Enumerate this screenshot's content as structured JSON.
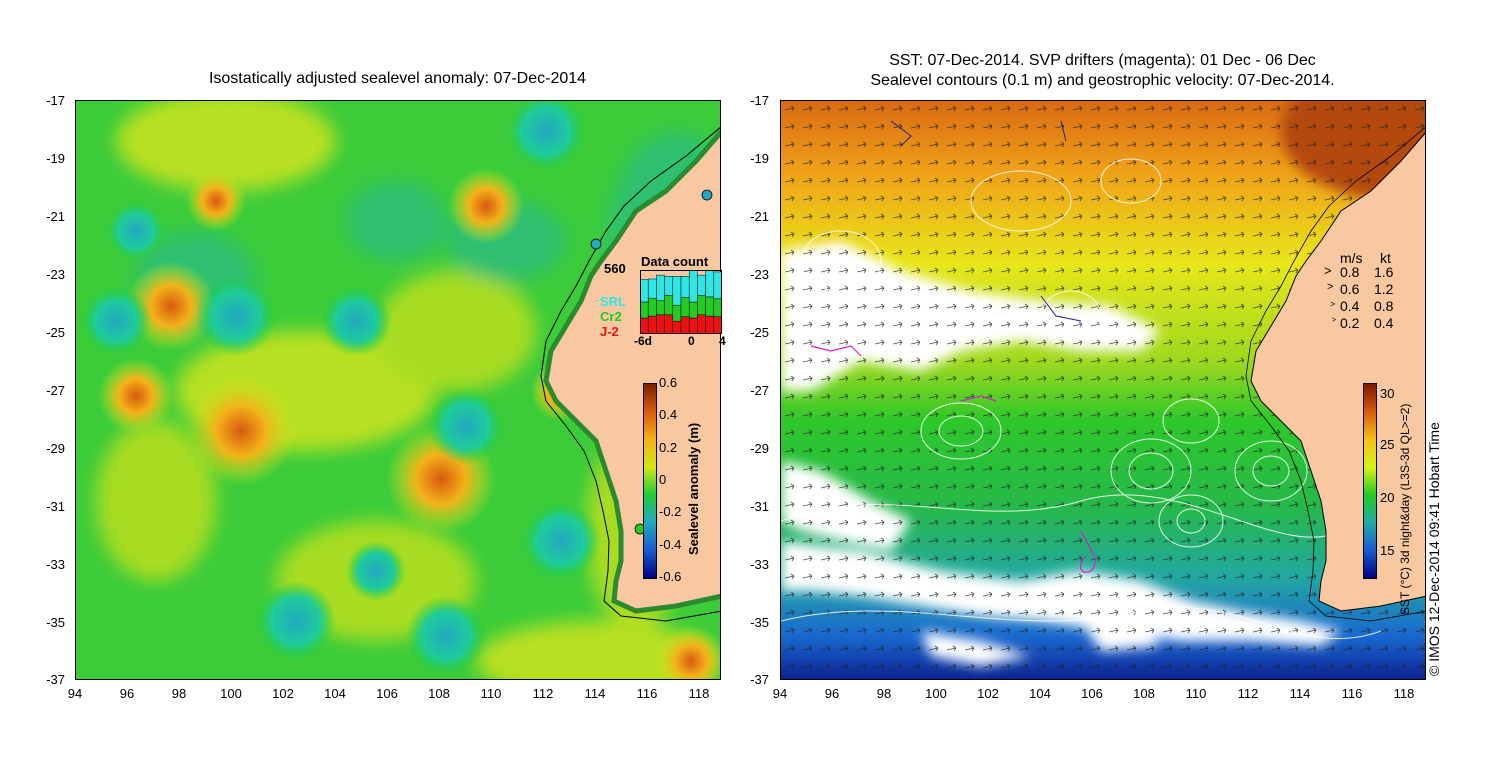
{
  "left_panel": {
    "title": "Isostatically adjusted sealevel anomaly: 07-Dec-2014",
    "lat_ticks": [
      "-17",
      "-19",
      "-21",
      "-23",
      "-25",
      "-27",
      "-29",
      "-31",
      "-33",
      "-35",
      "-37"
    ],
    "lon_ticks": [
      "94",
      "96",
      "98",
      "100",
      "102",
      "104",
      "106",
      "108",
      "110",
      "112",
      "114",
      "116",
      "118"
    ],
    "data_count": {
      "title": "Data count",
      "max": "560",
      "legend": [
        {
          "label": "SRL",
          "color": "#2ee6e6"
        },
        {
          "label": "Cr2",
          "color": "#22cc22"
        },
        {
          "label": "J-2",
          "color": "#ee1111"
        }
      ],
      "x_ticks": [
        "-6d",
        "0",
        "4"
      ],
      "days": [
        {
          "srl": 0.35,
          "cr2": 0.25,
          "j2": 0.25
        },
        {
          "srl": 0.3,
          "cr2": 0.28,
          "j2": 0.28
        },
        {
          "srl": 0.4,
          "cr2": 0.22,
          "j2": 0.3
        },
        {
          "srl": 0.3,
          "cr2": 0.3,
          "j2": 0.3
        },
        {
          "srl": 0.45,
          "cr2": 0.25,
          "j2": 0.2
        },
        {
          "srl": 0.33,
          "cr2": 0.3,
          "j2": 0.27
        },
        {
          "srl": 0.5,
          "cr2": 0.25,
          "j2": 0.25
        },
        {
          "srl": 0.32,
          "cr2": 0.3,
          "j2": 0.3
        },
        {
          "srl": 0.55,
          "cr2": 0.3,
          "j2": 0.28
        },
        {
          "srl": 0.42,
          "cr2": 0.28,
          "j2": 0.27
        }
      ]
    },
    "colorbar": {
      "label": "Sealevel anomaly (m)",
      "ticks": [
        "0.6",
        "0.4",
        "0.2",
        "0",
        "-0.2",
        "-0.4",
        "-0.6"
      ],
      "colors": [
        "#7a1f00",
        "#d85a10",
        "#f3b21a",
        "#cfe61a",
        "#1fcc3a",
        "#22a8c0",
        "#1a5ad0",
        "#000080"
      ]
    }
  },
  "right_panel": {
    "title_line1": "SST: 07-Dec-2014. SVP drifters (magenta): 01 Dec - 06 Dec",
    "title_line2": "Sealevel contours (0.1 m) and geostrophic velocity: 07-Dec-2014.",
    "lat_ticks": [
      "-17",
      "-19",
      "-21",
      "-23",
      "-25",
      "-27",
      "-29",
      "-31",
      "-33",
      "-35",
      "-37"
    ],
    "lon_ticks": [
      "94",
      "96",
      "98",
      "100",
      "102",
      "104",
      "106",
      "108",
      "110",
      "112",
      "114",
      "116",
      "118"
    ],
    "velocity_legend": {
      "headers": [
        "m/s",
        "kt"
      ],
      "rows": [
        [
          "0.8",
          "1.6"
        ],
        [
          "0.6",
          "1.2"
        ],
        [
          "0.4",
          "0.8"
        ],
        [
          "0.2",
          "0.4"
        ]
      ]
    },
    "colorbar": {
      "label": "SST (°C) 3d night&day (L3S-3d QL>=2)",
      "ticks": [
        "30",
        "25",
        "20",
        "15"
      ],
      "colors": [
        "#7a1a00",
        "#d85a10",
        "#f3c21a",
        "#d8f21a",
        "#22cc22",
        "#22aaaa",
        "#1a5ad0",
        "#000080"
      ]
    }
  },
  "credit": "© IMOS 12-Dec-2014 09:41 Hobart Time",
  "colors": {
    "land": "#f8c8a0",
    "coast": "#000000"
  }
}
